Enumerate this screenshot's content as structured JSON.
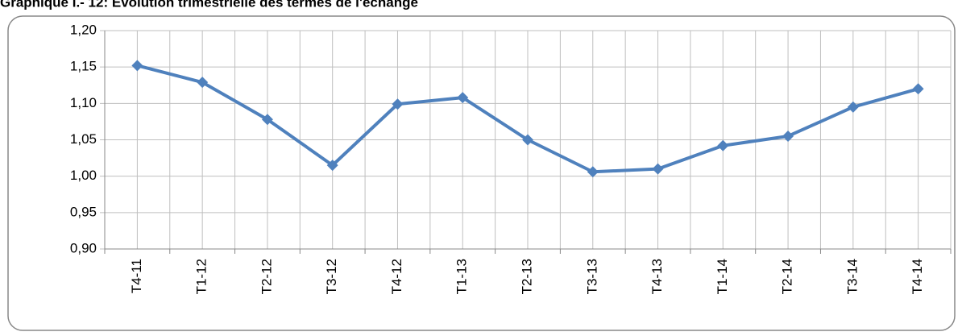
{
  "chart_data": {
    "type": "line",
    "title": "Graphique I.- 12: Evolution trimestrielle des termes de l'échange",
    "categories": [
      "T4-11",
      "T1-12",
      "T2-12",
      "T3-12",
      "T4-12",
      "T1-13",
      "T2-13",
      "T3-13",
      "T4-13",
      "T1-14",
      "T2-14",
      "T3-14",
      "T4-14"
    ],
    "series": [
      {
        "name": "Termes de l'échange",
        "color": "#4f81bd",
        "values": [
          1.152,
          1.129,
          1.078,
          1.015,
          1.099,
          1.108,
          1.05,
          1.006,
          1.01,
          1.042,
          1.055,
          1.095,
          1.12
        ]
      }
    ],
    "ylim": [
      0.9,
      1.2
    ],
    "yticks": [
      {
        "value": 0.9,
        "label": "0,90"
      },
      {
        "value": 0.95,
        "label": "0,95"
      },
      {
        "value": 1.0,
        "label": "1,00"
      },
      {
        "value": 1.05,
        "label": "1,05"
      },
      {
        "value": 1.1,
        "label": "1,10"
      },
      {
        "value": 1.15,
        "label": "1,15"
      },
      {
        "value": 1.2,
        "label": "1,20"
      }
    ],
    "grid": true
  }
}
